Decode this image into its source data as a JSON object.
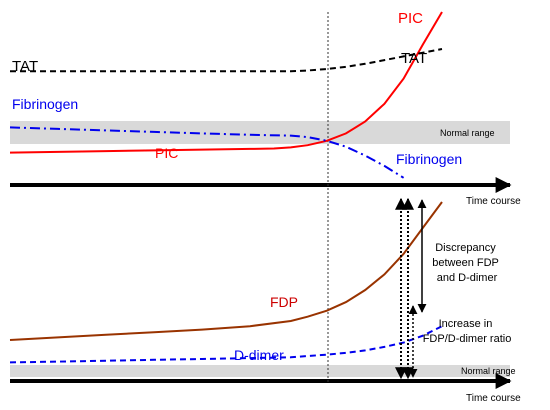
{
  "chart_data": [
    {
      "type": "line",
      "title": "",
      "xlabel": "Time course",
      "ylabel": "",
      "grid": false,
      "reference_band": "Normal range",
      "series": [
        {
          "name": "PIC",
          "color": "#ff0000",
          "style": "solid",
          "x": [
            0,
            10,
            20,
            30,
            40,
            50,
            55,
            58.5,
            62,
            66,
            70,
            74,
            78,
            82,
            86,
            90
          ],
          "y": [
            5,
            5.5,
            6,
            6.5,
            7,
            7.5,
            7.8,
            8.5,
            10,
            13,
            18,
            26,
            38,
            55,
            78,
            100
          ]
        },
        {
          "name": "TAT",
          "color": "#000000",
          "style": "dashed",
          "x": [
            0,
            10,
            20,
            30,
            40,
            50,
            58.5,
            62,
            66,
            70,
            74,
            78,
            82,
            86,
            90
          ],
          "y": [
            60,
            60,
            60,
            60,
            60,
            60,
            60,
            60.5,
            61.5,
            63,
            65,
            67.5,
            70,
            72.5,
            75
          ]
        },
        {
          "name": "Fibrinogen",
          "color": "#0000ee",
          "style": "dashdot",
          "x": [
            0,
            10,
            20,
            30,
            40,
            50,
            58.5,
            62,
            66,
            70,
            74,
            78,
            82
          ],
          "y": [
            22,
            21,
            20,
            19,
            18,
            17,
            16.5,
            15.5,
            13,
            9,
            3,
            -4,
            -12
          ]
        }
      ],
      "labels": {
        "pic_top": "PIC",
        "pic_bottom": "PIC",
        "tat_left": "TAT",
        "tat_right": "TAT",
        "fib_left": "Fibrinogen",
        "fib_right": "Fibrinogen",
        "normal": "Normal range",
        "time": "Time course"
      }
    },
    {
      "type": "line",
      "title": "",
      "xlabel": "Time course",
      "ylabel": "",
      "grid": false,
      "reference_band": "Normal range",
      "series": [
        {
          "name": "FDP",
          "color": "#993300",
          "style": "solid",
          "x": [
            0,
            10,
            20,
            30,
            40,
            50,
            58.5,
            62,
            66,
            70,
            74,
            78,
            82,
            86,
            90
          ],
          "y": [
            20,
            21.5,
            23,
            24.5,
            26,
            28,
            31,
            33.5,
            37,
            42,
            49,
            58,
            70,
            85,
            100
          ]
        },
        {
          "name": "D-dimer",
          "color": "#0000ee",
          "style": "dashed",
          "x": [
            0,
            10,
            20,
            30,
            40,
            50,
            58.5,
            62,
            66,
            70,
            74,
            78,
            82,
            86,
            90
          ],
          "y": [
            7,
            7.5,
            8,
            8.5,
            9,
            9.5,
            10,
            10.7,
            11.5,
            12.6,
            14,
            16,
            18.5,
            22.5,
            28
          ]
        }
      ],
      "labels": {
        "fdp": "FDP",
        "ddimer": "D-dimer",
        "normal": "Normal range",
        "time": "Time course",
        "discrepancy": [
          "Discrepancy",
          "between FDP",
          "and D-dimer"
        ],
        "increase": [
          "Increase in",
          "FDP/D-dimer ratio"
        ]
      }
    }
  ]
}
